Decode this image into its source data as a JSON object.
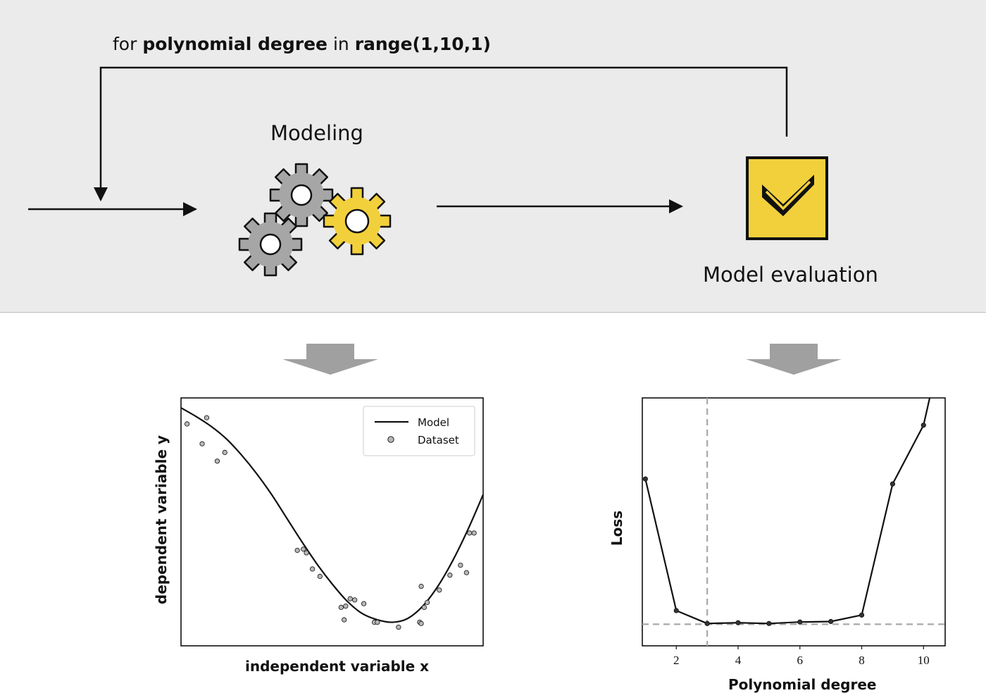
{
  "loop": {
    "prefix": "for ",
    "variable": "polynomial degree",
    "middle": " in ",
    "range": "range(1,10,1)"
  },
  "stages": {
    "modeling": "Modeling",
    "evaluation": "Model evaluation"
  },
  "icons": {
    "modeling": "gears-icon",
    "evaluation": "checkmark-icon"
  },
  "colors": {
    "band": "#ebebeb",
    "accent": "#f2d03b",
    "gear_gray": "#a6a6a6",
    "down_arrow": "#a0a0a0"
  },
  "chart_data": [
    {
      "type": "scatter",
      "xlabel": "independent variable x",
      "ylabel": "dependent variable y",
      "xticks": false,
      "yticks": false,
      "xlim": [
        0,
        10
      ],
      "ylim": [
        0,
        10
      ],
      "legend": {
        "placement": "top-right",
        "entries": [
          {
            "kind": "line",
            "label": "Model"
          },
          {
            "kind": "marker",
            "label": "Dataset"
          }
        ]
      },
      "series": [
        {
          "name": "Model",
          "kind": "line",
          "x": [
            0,
            0.5,
            1,
            1.5,
            2,
            2.5,
            3,
            3.5,
            4,
            4.5,
            5,
            5.5,
            6,
            6.5,
            7,
            7.5,
            8,
            8.5,
            9,
            9.5,
            10
          ],
          "y": [
            9.6,
            9.25,
            8.85,
            8.35,
            7.7,
            6.95,
            6.1,
            5.15,
            4.2,
            3.3,
            2.5,
            1.8,
            1.3,
            1.05,
            0.95,
            1.1,
            1.6,
            2.4,
            3.45,
            4.7,
            6.1
          ]
        },
        {
          "name": "Dataset",
          "kind": "scatter",
          "x": [
            0.2,
            0.85,
            0.7,
            1.2,
            1.45,
            3.85,
            4.05,
            4.15,
            4.35,
            4.6,
            5.3,
            5.45,
            5.6,
            5.75,
            6.05,
            5.4,
            6.4,
            6.5,
            7.2,
            7.9,
            7.95,
            7.95,
            8.05,
            8.15,
            8.55,
            8.9,
            9.25,
            9.45,
            9.7,
            9.55
          ],
          "y": [
            8.95,
            9.2,
            8.15,
            7.45,
            7.8,
            3.85,
            3.9,
            3.75,
            3.1,
            2.8,
            1.55,
            1.6,
            1.9,
            1.85,
            1.7,
            1.05,
            0.95,
            0.95,
            0.75,
            0.95,
            0.9,
            2.4,
            1.55,
            1.75,
            2.25,
            2.85,
            3.25,
            2.95,
            4.55,
            4.55
          ]
        }
      ]
    },
    {
      "type": "line",
      "xlabel": "Polynomial degree",
      "ylabel": "Loss",
      "xlim": [
        0.9,
        10.7
      ],
      "ylim": [
        0,
        100
      ],
      "xticks": [
        2,
        4,
        6,
        8,
        10
      ],
      "yticks": false,
      "reference_lines": {
        "vertical_x": 3,
        "horizontal_y": 8.7
      },
      "series": [
        {
          "x": [
            1,
            2,
            3,
            4,
            5,
            6,
            7,
            8,
            9,
            10,
            10.2
          ],
          "y": [
            67.3,
            14.2,
            9.0,
            9.3,
            9.0,
            9.6,
            9.8,
            12.4,
            65.3,
            89.0,
            100
          ]
        }
      ]
    }
  ]
}
